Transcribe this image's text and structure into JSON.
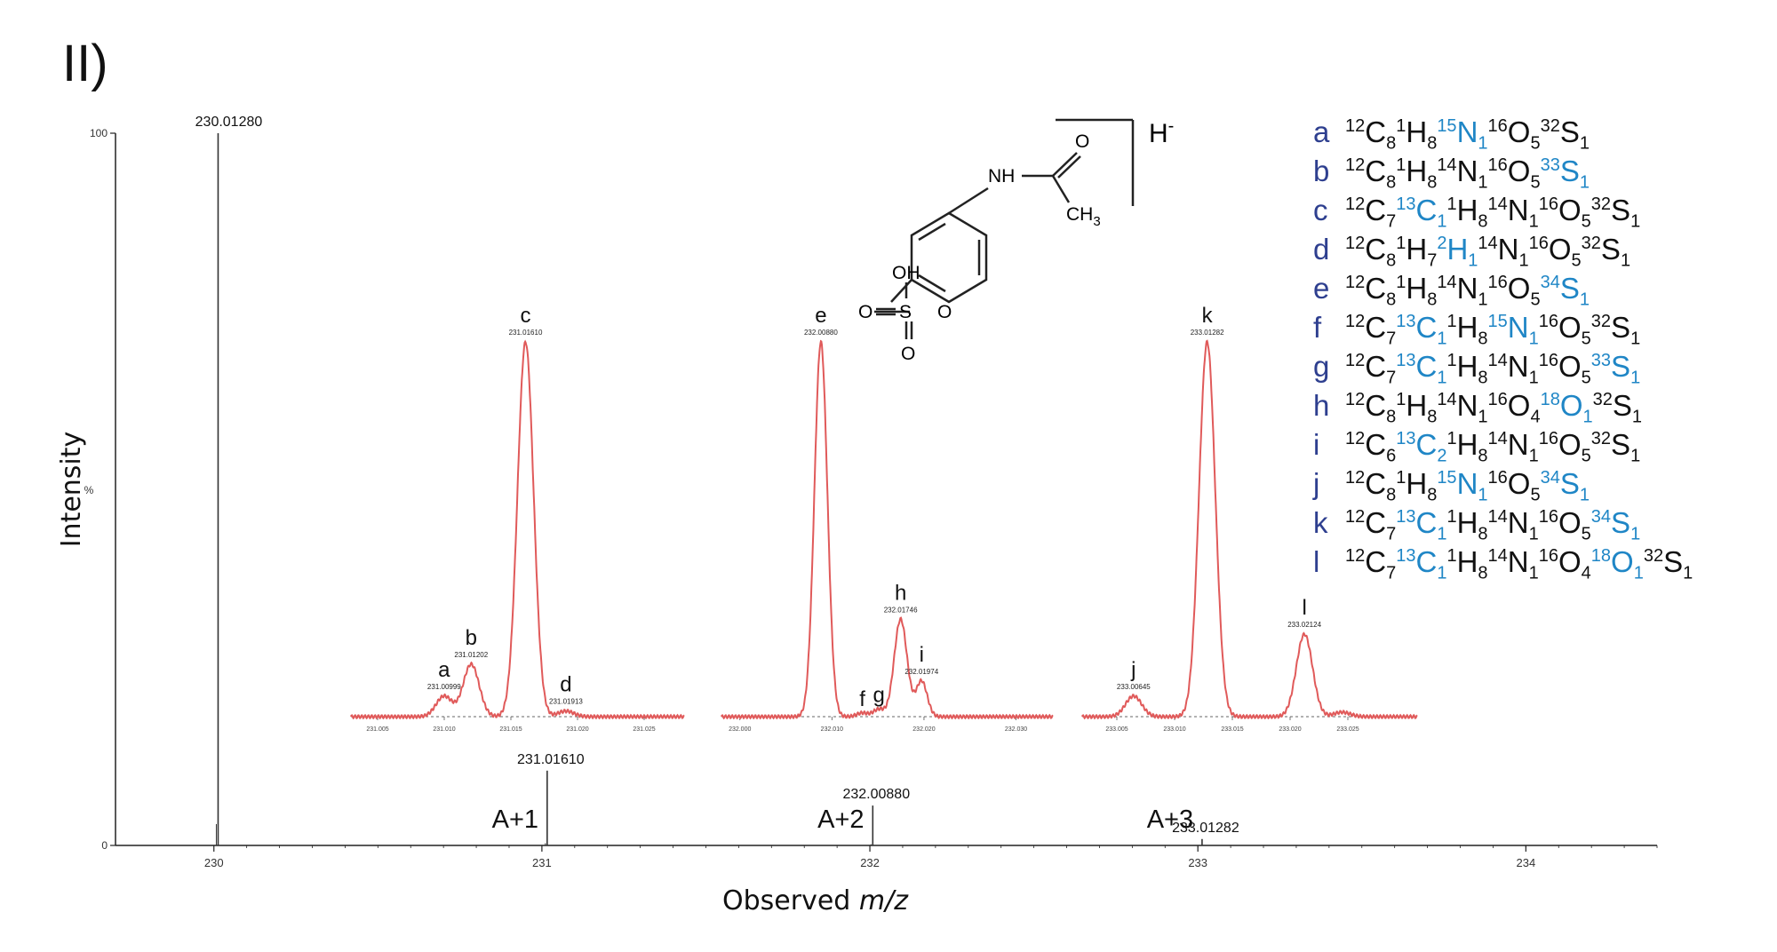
{
  "panel_label": "II)",
  "chart_data": {
    "type": "mass-spectrum",
    "xlabel_prefix": "Observed ",
    "xlabel_italic": "m/z",
    "ylabel": "Intensity",
    "y_percent_label": "%",
    "xlim": [
      229.7,
      234.4
    ],
    "ylim": [
      0,
      100
    ],
    "x_ticks": [
      230,
      231,
      232,
      233,
      234
    ],
    "y_ticks": [
      0,
      100
    ],
    "main_peaks": [
      {
        "mz": 230.0128,
        "intensity": 100,
        "label": "230.01280",
        "tag": ""
      },
      {
        "mz": 231.0161,
        "intensity": 10.5,
        "label": "231.01610",
        "tag": "A+1"
      },
      {
        "mz": 232.0088,
        "intensity": 5.6,
        "label": "232.00880",
        "tag": "A+2"
      },
      {
        "mz": 233.0128,
        "intensity": 0.9,
        "label": "233.01282",
        "tag": "A+3"
      }
    ],
    "insets": [
      {
        "xlim": [
          231.003,
          231.028
        ],
        "ticks": [
          "231.005",
          "231.010",
          "231.015",
          "231.020",
          "231.025"
        ],
        "peaks": [
          {
            "mz": 231.00999,
            "h": 0.055,
            "w": 0.0006,
            "letter": "a",
            "value": "231.00999"
          },
          {
            "mz": 231.01202,
            "h": 0.14,
            "w": 0.0006,
            "letter": "b",
            "value": "231.01202"
          },
          {
            "mz": 231.0161,
            "h": 1.0,
            "w": 0.0006,
            "letter": "c",
            "value": "231.01610"
          },
          {
            "mz": 231.01913,
            "h": 0.015,
            "w": 0.0006,
            "letter": "d",
            "value": "231.01913"
          }
        ]
      },
      {
        "xlim": [
          231.998,
          232.034
        ],
        "ticks": [
          "232.000",
          "232.010",
          "232.020",
          "232.030"
        ],
        "peaks": [
          {
            "mz": 232.0088,
            "h": 1.0,
            "w": 0.0007,
            "letter": "e",
            "value": "232.00880"
          },
          {
            "mz": 232.0133,
            "h": 0.01,
            "w": 0.0006,
            "letter": "f",
            "value": ""
          },
          {
            "mz": 232.0151,
            "h": 0.02,
            "w": 0.0006,
            "letter": "g",
            "value": ""
          },
          {
            "mz": 232.01746,
            "h": 0.26,
            "w": 0.0007,
            "letter": "h",
            "value": "232.01746"
          },
          {
            "mz": 232.01974,
            "h": 0.095,
            "w": 0.0006,
            "letter": "i",
            "value": "232.01974"
          }
        ]
      },
      {
        "xlim": [
          233.002,
          233.031
        ],
        "ticks": [
          "233.005",
          "233.010",
          "233.015",
          "233.020",
          "233.025"
        ],
        "peaks": [
          {
            "mz": 233.00645,
            "h": 0.055,
            "w": 0.0007,
            "letter": "j",
            "value": "233.00645"
          },
          {
            "mz": 233.01282,
            "h": 1.0,
            "w": 0.0007,
            "letter": "k",
            "value": "233.01282"
          },
          {
            "mz": 233.02124,
            "h": 0.22,
            "w": 0.0007,
            "letter": "l",
            "value": "233.02124"
          },
          {
            "mz": 233.0245,
            "h": 0.012,
            "w": 0.0007,
            "letter": "",
            "value": ""
          }
        ]
      }
    ],
    "colors": {
      "axis": "#222222",
      "inset_line": "#e05a5a",
      "legend_key": "#2e3f8f",
      "isotope": "#1f86c6"
    }
  },
  "structure": {
    "anion": "H",
    "anion_sign": "-",
    "labels": {
      "nh": "NH",
      "o": "O",
      "ch3": "CH",
      "ch3_sub": "3",
      "oh": "OH",
      "s": "S"
    }
  },
  "legend": [
    {
      "key": "a",
      "formula": [
        [
          "C",
          "12",
          "8",
          false
        ],
        [
          "H",
          "1",
          "8",
          false
        ],
        [
          "N",
          "15",
          "1",
          true
        ],
        [
          "O",
          "16",
          "5",
          false
        ],
        [
          "S",
          "32",
          "1",
          false
        ]
      ]
    },
    {
      "key": "b",
      "formula": [
        [
          "C",
          "12",
          "8",
          false
        ],
        [
          "H",
          "1",
          "8",
          false
        ],
        [
          "N",
          "14",
          "1",
          false
        ],
        [
          "O",
          "16",
          "5",
          false
        ],
        [
          "S",
          "33",
          "1",
          true
        ]
      ]
    },
    {
      "key": "c",
      "formula": [
        [
          "C",
          "12",
          "7",
          false
        ],
        [
          "C",
          "13",
          "1",
          true
        ],
        [
          "H",
          "1",
          "8",
          false
        ],
        [
          "N",
          "14",
          "1",
          false
        ],
        [
          "O",
          "16",
          "5",
          false
        ],
        [
          "S",
          "32",
          "1",
          false
        ]
      ]
    },
    {
      "key": "d",
      "formula": [
        [
          "C",
          "12",
          "8",
          false
        ],
        [
          "H",
          "1",
          "7",
          false
        ],
        [
          "H",
          "2",
          "1",
          true
        ],
        [
          "N",
          "14",
          "1",
          false
        ],
        [
          "O",
          "16",
          "5",
          false
        ],
        [
          "S",
          "32",
          "1",
          false
        ]
      ]
    },
    {
      "key": "e",
      "formula": [
        [
          "C",
          "12",
          "8",
          false
        ],
        [
          "H",
          "1",
          "8",
          false
        ],
        [
          "N",
          "14",
          "1",
          false
        ],
        [
          "O",
          "16",
          "5",
          false
        ],
        [
          "S",
          "34",
          "1",
          true
        ]
      ]
    },
    {
      "key": "f",
      "formula": [
        [
          "C",
          "12",
          "7",
          false
        ],
        [
          "C",
          "13",
          "1",
          true
        ],
        [
          "H",
          "1",
          "8",
          false
        ],
        [
          "N",
          "15",
          "1",
          true
        ],
        [
          "O",
          "16",
          "5",
          false
        ],
        [
          "S",
          "32",
          "1",
          false
        ]
      ]
    },
    {
      "key": "g",
      "formula": [
        [
          "C",
          "12",
          "7",
          false
        ],
        [
          "C",
          "13",
          "1",
          true
        ],
        [
          "H",
          "1",
          "8",
          false
        ],
        [
          "N",
          "14",
          "1",
          false
        ],
        [
          "O",
          "16",
          "5",
          false
        ],
        [
          "S",
          "33",
          "1",
          true
        ]
      ]
    },
    {
      "key": "h",
      "formula": [
        [
          "C",
          "12",
          "8",
          false
        ],
        [
          "H",
          "1",
          "8",
          false
        ],
        [
          "N",
          "14",
          "1",
          false
        ],
        [
          "O",
          "16",
          "4",
          false
        ],
        [
          "O",
          "18",
          "1",
          true
        ],
        [
          "S",
          "32",
          "1",
          false
        ]
      ]
    },
    {
      "key": "i",
      "formula": [
        [
          "C",
          "12",
          "6",
          false
        ],
        [
          "C",
          "13",
          "2",
          true
        ],
        [
          "H",
          "1",
          "8",
          false
        ],
        [
          "N",
          "14",
          "1",
          false
        ],
        [
          "O",
          "16",
          "5",
          false
        ],
        [
          "S",
          "32",
          "1",
          false
        ]
      ]
    },
    {
      "key": "j",
      "formula": [
        [
          "C",
          "12",
          "8",
          false
        ],
        [
          "H",
          "1",
          "8",
          false
        ],
        [
          "N",
          "15",
          "1",
          true
        ],
        [
          "O",
          "16",
          "5",
          false
        ],
        [
          "S",
          "34",
          "1",
          true
        ]
      ]
    },
    {
      "key": "k",
      "formula": [
        [
          "C",
          "12",
          "7",
          false
        ],
        [
          "C",
          "13",
          "1",
          true
        ],
        [
          "H",
          "1",
          "8",
          false
        ],
        [
          "N",
          "14",
          "1",
          false
        ],
        [
          "O",
          "16",
          "5",
          false
        ],
        [
          "S",
          "34",
          "1",
          true
        ]
      ]
    },
    {
      "key": "l",
      "formula": [
        [
          "C",
          "12",
          "7",
          false
        ],
        [
          "C",
          "13",
          "1",
          true
        ],
        [
          "H",
          "1",
          "8",
          false
        ],
        [
          "N",
          "14",
          "1",
          false
        ],
        [
          "O",
          "16",
          "4",
          false
        ],
        [
          "O",
          "18",
          "1",
          true
        ],
        [
          "S",
          "32",
          "1",
          false
        ]
      ]
    }
  ]
}
